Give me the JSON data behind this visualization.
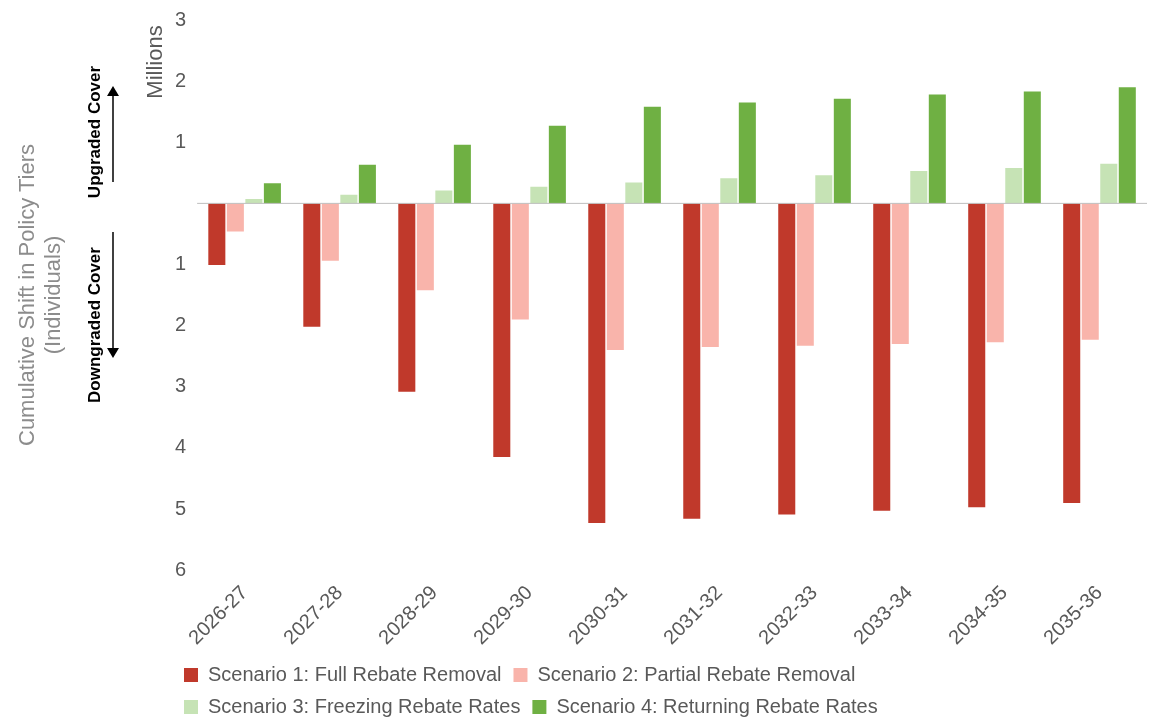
{
  "chart_data": {
    "type": "bar",
    "ylabel": "Cumulative Shift in Policy Tiers\n(Individuals)",
    "annotations": [
      "Millions",
      "Upgraded Cover",
      "Downgraded Cover"
    ],
    "categories": [
      "2026-27",
      "2027-28",
      "2028-29",
      "2029-30",
      "2030-31",
      "2031-32",
      "2032-33",
      "2033-34",
      "2034-35",
      "2035-36"
    ],
    "series": [
      {
        "name": "Scenario 1: Full Rebate Removal",
        "color": "#c0392b",
        "values": [
          -1.01,
          -2.02,
          -3.08,
          -4.15,
          -5.23,
          -5.16,
          -5.09,
          -5.03,
          -4.97,
          -4.9
        ]
      },
      {
        "name": "Scenario 2: Partial Rebate Removal",
        "color": "#f9b4ab",
        "values": [
          -0.46,
          -0.94,
          -1.42,
          -1.9,
          -2.4,
          -2.35,
          -2.33,
          -2.3,
          -2.27,
          -2.23
        ]
      },
      {
        "name": "Scenario 3: Freezing Rebate Rates",
        "color": "#c6e3b5",
        "values": [
          0.07,
          0.14,
          0.21,
          0.27,
          0.34,
          0.41,
          0.46,
          0.53,
          0.58,
          0.65
        ]
      },
      {
        "name": "Scenario 4: Returning Rebate Rates",
        "color": "#6fb043",
        "values": [
          0.33,
          0.63,
          0.96,
          1.27,
          1.58,
          1.65,
          1.71,
          1.78,
          1.83,
          1.9
        ]
      }
    ],
    "ylim": [
      -6,
      3
    ],
    "yticks": [
      {
        "value": -6,
        "label": "6"
      },
      {
        "value": -5,
        "label": "5"
      },
      {
        "value": -4,
        "label": "4"
      },
      {
        "value": -3,
        "label": "3"
      },
      {
        "value": -2,
        "label": "2"
      },
      {
        "value": -1,
        "label": "1"
      },
      {
        "value": 0,
        "label": null
      },
      1,
      2,
      3
    ],
    "legend": "bottom"
  }
}
